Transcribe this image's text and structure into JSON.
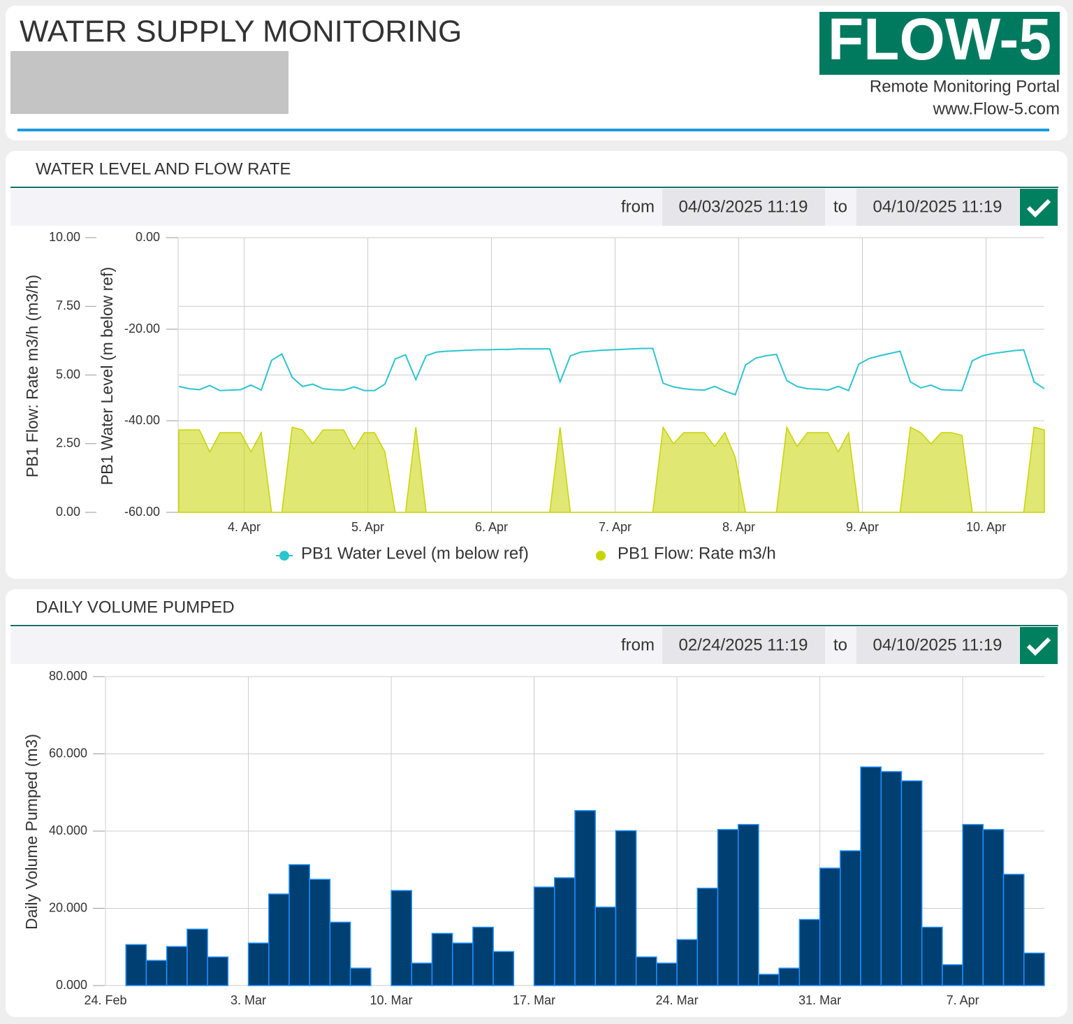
{
  "header": {
    "title": "WATER SUPPLY MONITORING",
    "logo": "FLOW-5",
    "subtitle": "Remote Monitoring Portal",
    "url": "www.Flow-5.com"
  },
  "chart_data": [
    {
      "type": "line-area",
      "title": "WATER LEVEL AND FLOW RATE",
      "filter_labels": [
        "from",
        "to"
      ],
      "range": [
        "04/03/2025 11:19",
        "04/10/2025 11:19"
      ],
      "xlim": [
        "04/03/2025 11:19",
        "04/10/2025 11:19"
      ],
      "xticks": [
        {
          "value": "04/04/2025 00:00",
          "label": "4. Apr"
        },
        {
          "value": "04/05/2025 00:00",
          "label": "5. Apr"
        },
        {
          "value": "04/06/2025 00:00",
          "label": "6. Apr"
        },
        {
          "value": "04/07/2025 00:00",
          "label": "7. Apr"
        },
        {
          "value": "04/08/2025 00:00",
          "label": "8. Apr"
        },
        {
          "value": "04/09/2025 00:00",
          "label": "9. Apr"
        },
        {
          "value": "04/10/2025 00:00",
          "label": "10. Apr"
        }
      ],
      "ylabel": "PB1 Flow: Rate m3/h (m3/h)",
      "ylim": [
        0,
        10
      ],
      "yticks": [
        {
          "value": 0,
          "label": "0.00"
        },
        {
          "value": 2.5,
          "label": "2.50"
        },
        {
          "value": 5,
          "label": "5.00"
        },
        {
          "value": 7.5,
          "label": "7.50"
        },
        {
          "value": 10,
          "label": "10.00"
        }
      ],
      "y2label": "PB1 Water Level (m below ref)",
      "y2lim": [
        -60,
        0
      ],
      "y2ticks": [
        {
          "value": -60,
          "label": "-60.00"
        },
        {
          "value": -40,
          "label": "-40.00"
        },
        {
          "value": -20,
          "label": "-20.00"
        },
        {
          "value": 0,
          "label": "0.00"
        }
      ],
      "grid": true,
      "x": [
        "04/03/2025 11:19",
        "04/03/2025 13:19",
        "04/03/2025 15:19",
        "04/03/2025 17:19",
        "04/03/2025 19:19",
        "04/03/2025 21:19",
        "04/03/2025 23:19",
        "04/04/2025 01:19",
        "04/04/2025 03:19",
        "04/04/2025 05:19",
        "04/04/2025 07:19",
        "04/04/2025 09:19",
        "04/04/2025 11:19",
        "04/04/2025 13:19",
        "04/04/2025 15:19",
        "04/04/2025 17:19",
        "04/04/2025 19:19",
        "04/04/2025 21:19",
        "04/04/2025 23:19",
        "04/05/2025 01:19",
        "04/05/2025 03:19",
        "04/05/2025 05:19",
        "04/05/2025 07:19",
        "04/05/2025 09:19",
        "04/05/2025 11:19",
        "04/05/2025 13:19",
        "04/05/2025 15:19",
        "04/05/2025 17:19",
        "04/05/2025 19:19",
        "04/05/2025 21:19",
        "04/05/2025 23:19",
        "04/06/2025 01:19",
        "04/06/2025 03:19",
        "04/06/2025 05:19",
        "04/06/2025 07:19",
        "04/06/2025 09:19",
        "04/06/2025 11:19",
        "04/06/2025 13:19",
        "04/06/2025 15:19",
        "04/06/2025 17:19",
        "04/06/2025 19:19",
        "04/06/2025 21:19",
        "04/06/2025 23:19",
        "04/07/2025 01:19",
        "04/07/2025 03:19",
        "04/07/2025 05:19",
        "04/07/2025 07:19",
        "04/07/2025 09:19",
        "04/07/2025 11:19",
        "04/07/2025 13:19",
        "04/07/2025 15:19",
        "04/07/2025 17:19",
        "04/07/2025 19:19",
        "04/07/2025 21:19",
        "04/07/2025 23:19",
        "04/08/2025 01:19",
        "04/08/2025 03:19",
        "04/08/2025 05:19",
        "04/08/2025 07:19",
        "04/08/2025 09:19",
        "04/08/2025 11:19",
        "04/08/2025 13:19",
        "04/08/2025 15:19",
        "04/08/2025 17:19",
        "04/08/2025 19:19",
        "04/08/2025 21:19",
        "04/08/2025 23:19",
        "04/09/2025 01:19",
        "04/09/2025 03:19",
        "04/09/2025 05:19",
        "04/09/2025 07:19",
        "04/09/2025 09:19",
        "04/09/2025 11:19",
        "04/09/2025 13:19",
        "04/09/2025 15:19",
        "04/09/2025 17:19",
        "04/09/2025 19:19",
        "04/09/2025 21:19",
        "04/09/2025 23:19",
        "04/10/2025 01:19",
        "04/10/2025 03:19",
        "04/10/2025 05:19",
        "04/10/2025 07:19",
        "04/10/2025 09:19",
        "04/10/2025 11:19"
      ],
      "series": [
        {
          "name": "PB1 Water Level (m below ref)",
          "color": "#2bc5cf",
          "axis": "y2",
          "kind": "line",
          "values": [
            -32.5,
            -33.0,
            -33.2,
            -32.3,
            -33.4,
            -33.3,
            -33.2,
            -32.2,
            -33.3,
            -26.8,
            -25.4,
            -30.5,
            -32.5,
            -32.0,
            -33.0,
            -33.2,
            -33.3,
            -32.6,
            -33.4,
            -33.4,
            -32.0,
            -26.5,
            -25.6,
            -31.0,
            -25.8,
            -25.0,
            -24.8,
            -24.7,
            -24.6,
            -24.5,
            -24.5,
            -24.4,
            -24.4,
            -24.3,
            -24.3,
            -24.3,
            -24.3,
            -31.5,
            -25.8,
            -25.0,
            -24.8,
            -24.6,
            -24.5,
            -24.4,
            -24.3,
            -24.2,
            -24.2,
            -31.8,
            -32.6,
            -33.0,
            -33.2,
            -33.3,
            -32.5,
            -33.5,
            -34.3,
            -27.8,
            -26.3,
            -25.8,
            -25.5,
            -31.2,
            -32.5,
            -33.0,
            -33.1,
            -33.3,
            -32.5,
            -33.4,
            -27.6,
            -26.4,
            -25.8,
            -25.3,
            -24.8,
            -31.5,
            -32.8,
            -32.2,
            -33.2,
            -33.3,
            -33.4,
            -26.9,
            -25.8,
            -25.3,
            -25.0,
            -24.7,
            -24.5,
            -31.5,
            -33.0
          ]
        },
        {
          "name": "PB1 Flow: Rate m3/h",
          "color": "#c8d400",
          "kind": "area",
          "values": [
            3.0,
            3.0,
            3.0,
            2.2,
            2.9,
            2.9,
            2.9,
            2.2,
            2.9,
            0,
            0,
            3.1,
            3.0,
            2.5,
            3.0,
            3.0,
            3.0,
            2.3,
            2.9,
            2.9,
            2.2,
            0,
            0,
            3.1,
            0,
            0,
            0,
            0,
            0,
            0,
            0,
            0,
            0,
            0,
            0,
            0,
            0,
            3.1,
            0,
            0,
            0,
            0,
            0,
            0,
            0,
            0,
            0,
            3.1,
            2.5,
            2.9,
            2.9,
            2.9,
            2.4,
            2.9,
            2.0,
            0,
            0,
            0,
            0,
            3.1,
            2.4,
            2.9,
            2.9,
            2.9,
            2.2,
            2.9,
            0,
            0,
            0,
            0,
            0,
            3.1,
            2.9,
            2.5,
            2.9,
            2.9,
            2.8,
            0,
            0,
            0,
            0,
            0,
            0,
            3.1,
            3.0
          ]
        }
      ]
    },
    {
      "type": "bar",
      "title": "DAILY VOLUME PUMPED",
      "filter_labels": [
        "from",
        "to"
      ],
      "range": [
        "02/24/2025 11:19",
        "04/10/2025 11:19"
      ],
      "xlim": [
        "02/24/2025 00:00",
        "04/11/2025 00:00"
      ],
      "xticks": [
        {
          "value": "02/24/2025 00:00",
          "label": "24. Feb"
        },
        {
          "value": "03/03/2025 00:00",
          "label": "3. Mar"
        },
        {
          "value": "03/10/2025 00:00",
          "label": "10. Mar"
        },
        {
          "value": "03/17/2025 00:00",
          "label": "17. Mar"
        },
        {
          "value": "03/24/2025 00:00",
          "label": "24. Mar"
        },
        {
          "value": "03/31/2025 00:00",
          "label": "31. Mar"
        },
        {
          "value": "04/07/2025 00:00",
          "label": "7. Apr"
        }
      ],
      "ylabel": "Daily Volume Pumped (m3)",
      "ylim": [
        0,
        80
      ],
      "yticks": [
        {
          "value": 0,
          "label": "0.000"
        },
        {
          "value": 20,
          "label": "20.000"
        },
        {
          "value": 40,
          "label": "40.000"
        },
        {
          "value": 60,
          "label": "60.000"
        },
        {
          "value": 80,
          "label": "80.000"
        }
      ],
      "grid": true,
      "color": "#003f72",
      "edge_color": "#1e90ff",
      "x": [
        "02/25/2025",
        "02/26/2025",
        "02/27/2025",
        "02/28/2025",
        "03/01/2025",
        "03/03/2025",
        "03/04/2025",
        "03/05/2025",
        "03/06/2025",
        "03/07/2025",
        "03/08/2025",
        "03/10/2025",
        "03/11/2025",
        "03/12/2025",
        "03/13/2025",
        "03/14/2025",
        "03/15/2025",
        "03/17/2025",
        "03/18/2025",
        "03/19/2025",
        "03/20/2025",
        "03/21/2025",
        "03/22/2025",
        "03/23/2025",
        "03/24/2025",
        "03/25/2025",
        "03/26/2025",
        "03/27/2025",
        "03/28/2025",
        "03/29/2025",
        "03/30/2025",
        "03/31/2025",
        "04/01/2025",
        "04/02/2025",
        "04/03/2025",
        "04/04/2025",
        "04/05/2025",
        "04/06/2025",
        "04/07/2025",
        "04/08/2025",
        "04/09/2025",
        "04/10/2025"
      ],
      "values": [
        10.6,
        6.5,
        10.1,
        14.6,
        7.4,
        11.0,
        23.7,
        31.3,
        27.5,
        16.4,
        4.5,
        24.6,
        5.8,
        13.5,
        11.0,
        15.1,
        8.8,
        25.5,
        27.9,
        45.3,
        20.3,
        40.1,
        7.4,
        5.8,
        11.9,
        25.2,
        40.4,
        41.7,
        2.9,
        4.5,
        17.1,
        30.4,
        34.9,
        56.6,
        55.4,
        53.0,
        15.1,
        5.4,
        41.7,
        40.4,
        28.8,
        8.4
      ]
    }
  ]
}
